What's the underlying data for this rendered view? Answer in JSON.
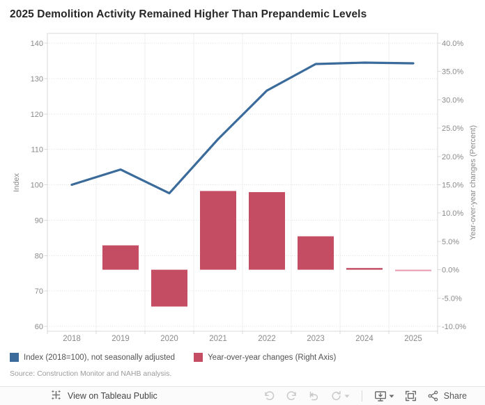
{
  "title": "2025 Demolition Activity Remained Higher Than Prepandemic Levels",
  "chart_data": {
    "type": "combo (line + bar)",
    "categories": [
      "2018",
      "2019",
      "2020",
      "2021",
      "2022",
      "2023",
      "2024",
      "2025"
    ],
    "series": [
      {
        "name": "Index (2018=100), not seasonally adjusted",
        "type": "line",
        "axis": "left",
        "color": "#3A6B9A",
        "values": [
          100,
          104.3,
          97.6,
          112.9,
          126.6,
          134.1,
          134.5,
          134.3
        ]
      },
      {
        "name": "Year-over-year changes (Right Axis)",
        "type": "bar",
        "axis": "right",
        "color": "#C44D63",
        "values": [
          null,
          4.3,
          -6.5,
          13.9,
          13.7,
          5.9,
          0.3,
          -0.15
        ],
        "point_colors": [
          null,
          null,
          null,
          null,
          null,
          null,
          null,
          "#E899AE"
        ]
      }
    ],
    "left_axis": {
      "title": "Index",
      "min": 60,
      "max": 140,
      "step": 10
    },
    "right_axis": {
      "title": "Year-over-year changes (Percent)",
      "min": -10,
      "max": 40,
      "step": 5,
      "format": "percent-1-decimal"
    },
    "grid": {
      "horizontal": "dotted",
      "vertical_dividers": true
    },
    "legend_position": "bottom-left"
  },
  "legend": {
    "items": [
      {
        "label": "Index (2018=100), not seasonally adjusted",
        "color": "#3A6B9A"
      },
      {
        "label": "Year-over-year changes (Right Axis)",
        "color": "#C44D63"
      }
    ]
  },
  "source_note": "Source: Construction Monitor and NAHB analysis.",
  "footer": {
    "view_on_label": "View on Tableau Public",
    "share_label": "Share",
    "buttons": [
      "undo",
      "redo",
      "revert",
      "refresh",
      "download",
      "fullscreen",
      "share"
    ]
  },
  "colors": {
    "line": "#3A6B9A",
    "bar": "#C44D63",
    "bar_highlight": "#E899AE",
    "axis_text": "#8a8a8a",
    "gridline": "#e1e1e1",
    "plot_border": "#d8d8d8",
    "title_text": "#272727"
  }
}
